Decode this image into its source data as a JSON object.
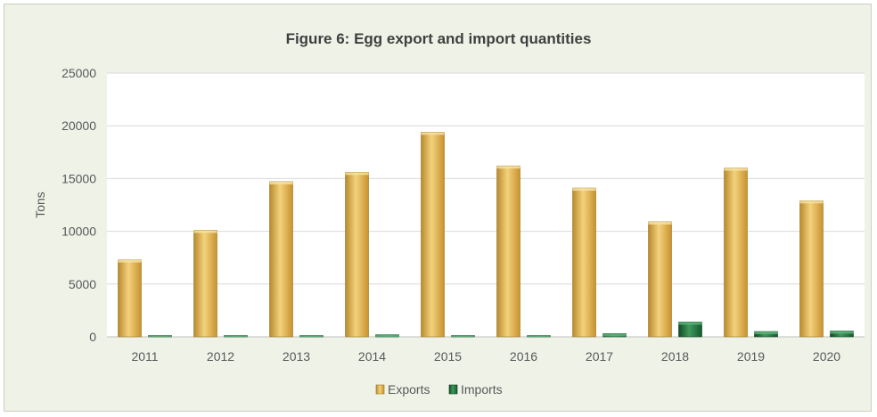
{
  "chart_data": {
    "type": "bar",
    "title": "Figure 6: Egg export and import quantities",
    "xlabel": "",
    "ylabel": "Tons",
    "categories": [
      "2011",
      "2012",
      "2013",
      "2014",
      "2015",
      "2016",
      "2017",
      "2018",
      "2019",
      "2020"
    ],
    "series": [
      {
        "name": "Exports",
        "color": "#d9a93f",
        "values": [
          7300,
          10100,
          14700,
          15600,
          19400,
          16200,
          14100,
          10900,
          16000,
          12900
        ]
      },
      {
        "name": "Imports",
        "color": "#1f6b3a",
        "values": [
          0,
          100,
          100,
          200,
          0,
          0,
          300,
          1400,
          500,
          550
        ]
      }
    ],
    "ylim": [
      0,
      25000
    ],
    "yticks": [
      0,
      5000,
      10000,
      15000,
      20000,
      25000
    ],
    "grid": true,
    "legend_position": "bottom"
  }
}
